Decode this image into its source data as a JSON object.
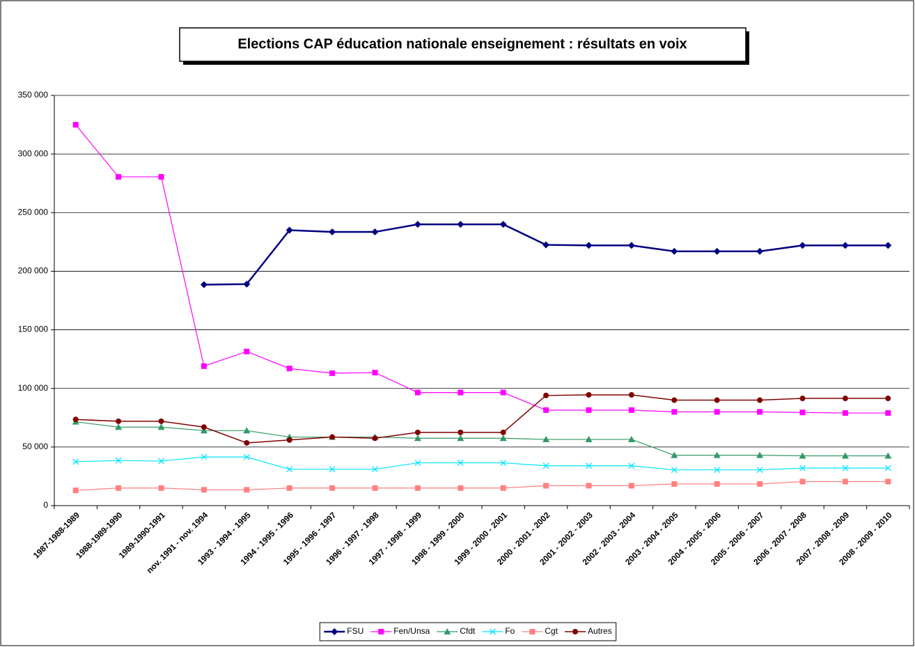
{
  "chart_data": {
    "type": "line",
    "title": "Elections CAP éducation nationale enseignement : résultats en voix",
    "categories": [
      "1987-1988-1989",
      "1988-1989-1990",
      "1989-1990-1991",
      "nov. 1991 - nov. 1994",
      "1993 - 1994 - 1995",
      "1994 - 1995 - 1996",
      "1995 - 1996 - 1997",
      "1996 - 1997 - 1998",
      "1997 - 1998 - 1999",
      "1998 - 1999 - 2000",
      "1999 - 2000 - 2001",
      "2000 - 2001 - 2002",
      "2001 - 2002 - 2003",
      "2002 - 2003 - 2004",
      "2003 - 2004 - 2005",
      "2004 - 2005 - 2006",
      "2005 - 2006 - 2007",
      "2006 - 2007 - 2008",
      "2007 - 2008 - 2009",
      "2008 - 2009 - 2010"
    ],
    "series": [
      {
        "name": "FSU",
        "color": "#000080",
        "marker": "diamond",
        "width": 2.5,
        "values": [
          null,
          null,
          null,
          188500,
          189000,
          235000,
          233500,
          233500,
          240000,
          240000,
          240000,
          222500,
          222000,
          222000,
          217000,
          217000,
          217000,
          222000,
          222000,
          222000
        ]
      },
      {
        "name": "Fen/Unsa",
        "color": "#ff00ff",
        "marker": "square",
        "width": 1.2,
        "values": [
          325000,
          280500,
          280500,
          119000,
          131500,
          117000,
          113000,
          113500,
          96500,
          96500,
          96500,
          81500,
          81500,
          81500,
          80000,
          80000,
          80000,
          79500,
          79000,
          79000
        ]
      },
      {
        "name": "Cfdt",
        "color": "#339966",
        "marker": "triangle",
        "width": 1.2,
        "values": [
          71500,
          67000,
          67000,
          64000,
          64000,
          58500,
          58500,
          58500,
          57500,
          57500,
          57500,
          56500,
          56500,
          56500,
          43000,
          43000,
          43000,
          42500,
          42500,
          42500
        ]
      },
      {
        "name": "Fo",
        "color": "#00e5ff",
        "marker": "x",
        "width": 1.2,
        "values": [
          37500,
          38500,
          38000,
          41500,
          41500,
          31000,
          31000,
          31000,
          36500,
          36500,
          36500,
          34000,
          34000,
          34000,
          30500,
          30500,
          30500,
          32000,
          32000,
          32000
        ]
      },
      {
        "name": "Cgt",
        "color": "#ff8080",
        "marker": "square",
        "width": 1.2,
        "values": [
          13000,
          15000,
          15000,
          13500,
          13500,
          15000,
          15000,
          15000,
          15000,
          15000,
          15000,
          17000,
          17000,
          17000,
          18500,
          18500,
          18500,
          20500,
          20500,
          20500
        ]
      },
      {
        "name": "Autres",
        "color": "#800000",
        "marker": "circle",
        "width": 1.5,
        "values": [
          73500,
          72000,
          72000,
          67000,
          53500,
          56000,
          58500,
          57500,
          62500,
          62500,
          62500,
          94000,
          94500,
          94500,
          90000,
          90000,
          90000,
          91500,
          91500,
          91500
        ]
      }
    ],
    "ylim": [
      0,
      350000
    ],
    "yticks": [
      0,
      {
        "value": 50000,
        "label": "50 000"
      },
      {
        "value": 100000,
        "label": "100 000"
      },
      {
        "value": 150000,
        "label": "150 000"
      },
      {
        "value": 200000,
        "label": "200 000"
      },
      {
        "value": 250000,
        "label": "250 000"
      },
      {
        "value": 300000,
        "label": "300 000"
      },
      {
        "value": 350000,
        "label": "350 000"
      }
    ],
    "grid": true,
    "legend": "bottom"
  }
}
